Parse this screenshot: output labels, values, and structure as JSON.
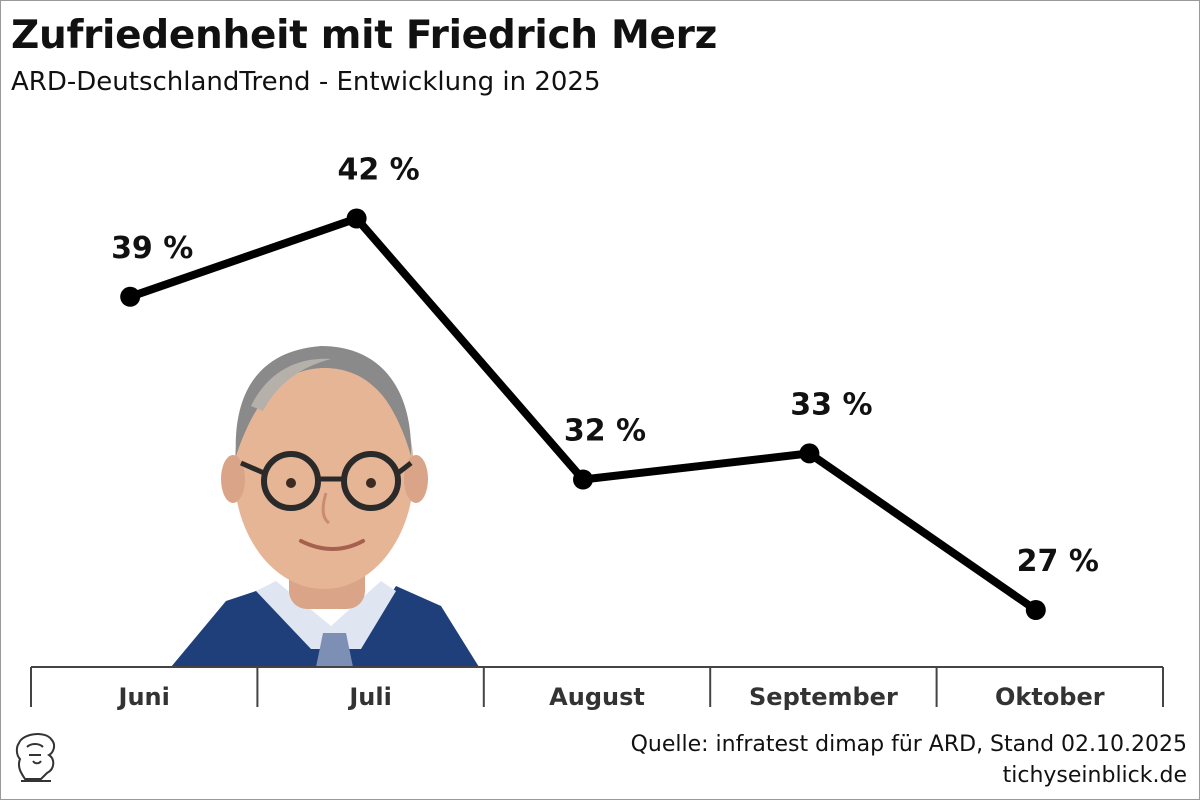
{
  "header": {
    "title": "Zufriedenheit mit Friedrich Merz",
    "subtitle": "ARD-DeutschlandTrend - Entwicklung in 2025"
  },
  "footer": {
    "source": "Quelle: infratest dimap für ARD, Stand 02.10.2025",
    "site": "tichyseinblick.de"
  },
  "colors": {
    "line": "#000000",
    "axis": "#444444",
    "suit": "#1f3f7a",
    "skin": "#e9b79a"
  },
  "chart_data": {
    "type": "line",
    "title": "Zufriedenheit mit Friedrich Merz",
    "subtitle": "ARD-DeutschlandTrend - Entwicklung in 2025",
    "categories": [
      "Juni",
      "Juli",
      "August",
      "September",
      "Oktober"
    ],
    "series": [
      {
        "values": [
          39,
          42,
          32,
          33,
          27
        ],
        "labels": [
          "39 %",
          "42 %",
          "32 %",
          "33 %",
          "27 %"
        ]
      }
    ],
    "unit": "%",
    "xlabel": "",
    "ylabel": "",
    "grid": false,
    "legend": "none"
  }
}
